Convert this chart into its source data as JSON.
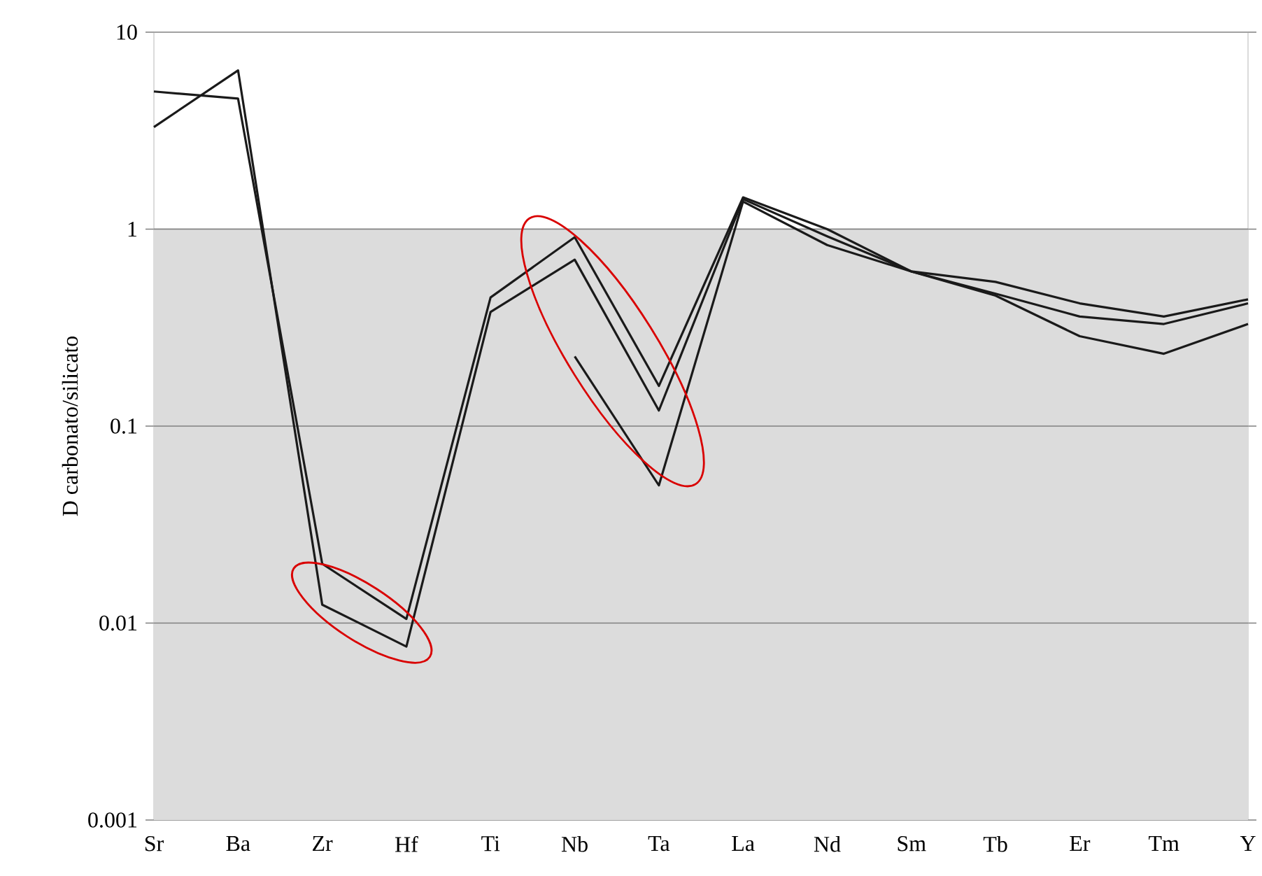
{
  "chart_data": {
    "type": "line",
    "ylabel": "D carbonato/silicato",
    "categories": [
      "Sr",
      "Ba",
      "Zr",
      "Hf",
      "Ti",
      "Nb",
      "Ta",
      "La",
      "Nd",
      "Sm",
      "Tb",
      "Er",
      "Tm",
      "Y"
    ],
    "series": [
      {
        "color": "#1a1a1a",
        "values": [
          5.0,
          4.6,
          0.02,
          0.0105,
          0.45,
          0.91,
          0.16,
          1.45,
          1.0,
          0.61,
          0.54,
          0.42,
          0.36,
          0.44
        ]
      },
      {
        "color": "#1a1a1a",
        "values": [
          3.3,
          6.4,
          0.0124,
          0.0076,
          0.38,
          0.7,
          0.12,
          1.42,
          0.92,
          0.61,
          0.47,
          0.36,
          0.33,
          0.42
        ]
      },
      {
        "color": "#1a1a1a",
        "values": [
          null,
          null,
          null,
          null,
          null,
          0.226,
          0.05,
          1.38,
          0.83,
          0.61,
          0.46,
          0.286,
          0.233,
          0.33
        ]
      }
    ],
    "log": "y",
    "ylim": [
      0.001,
      10
    ],
    "yticks": [
      0.001,
      0.01,
      0.1,
      1,
      10
    ],
    "grid": "y",
    "marker": "none",
    "line_style": "solid",
    "bands": [
      {
        "axis": "y",
        "from": 0.001,
        "to": 1,
        "color": "#dcdcdc"
      }
    ]
  }
}
